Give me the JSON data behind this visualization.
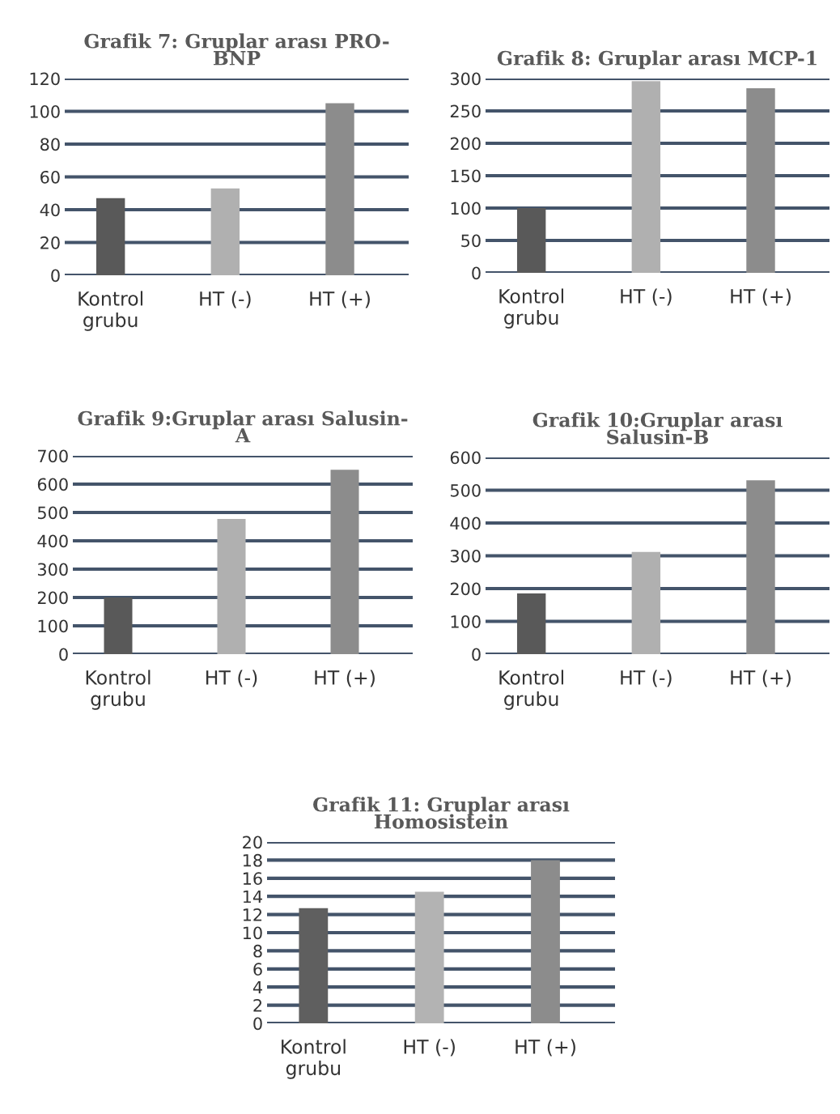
{
  "chart_data": [
    {
      "type": "bar",
      "title": "Grafik 7: Gruplar arası PRO-\nBNP",
      "categories": [
        "Kontrol\ngrubu",
        "HT (-)",
        "HT (+)"
      ],
      "values": [
        47,
        53,
        105
      ],
      "colors": [
        "#595959",
        "#b0b0b0",
        "#8c8c8c"
      ],
      "ylim": [
        0,
        120
      ],
      "yticks": [
        0,
        20,
        40,
        60,
        80,
        100,
        120
      ],
      "grid": "y"
    },
    {
      "type": "bar",
      "title": "Grafik 8: Gruplar arası MCP-1",
      "categories": [
        "Kontrol\ngrubu",
        "HT (-)",
        "HT (+)"
      ],
      "values": [
        100,
        296,
        285
      ],
      "colors": [
        "#595959",
        "#b0b0b0",
        "#8c8c8c"
      ],
      "ylim": [
        0,
        300
      ],
      "yticks": [
        0,
        50,
        100,
        150,
        200,
        250,
        300
      ],
      "grid": "y"
    },
    {
      "type": "bar",
      "title": "Grafik 9:Gruplar arası Salusin-\nA",
      "categories": [
        "Kontrol\ngrubu",
        "HT (-)",
        "HT (+)"
      ],
      "values": [
        200,
        477,
        651
      ],
      "colors": [
        "#595959",
        "#b0b0b0",
        "#8c8c8c"
      ],
      "ylim": [
        0,
        700
      ],
      "yticks": [
        0,
        100,
        200,
        300,
        400,
        500,
        600,
        700
      ],
      "grid": "y"
    },
    {
      "type": "bar",
      "title": "Grafik 10:Gruplar arası\nSalusin-B",
      "categories": [
        "Kontrol\ngrubu",
        "HT (-)",
        "HT (+)"
      ],
      "values": [
        185,
        312,
        530
      ],
      "colors": [
        "#595959",
        "#b0b0b0",
        "#8c8c8c"
      ],
      "ylim": [
        0,
        600
      ],
      "yticks": [
        0,
        100,
        200,
        300,
        400,
        500,
        600
      ],
      "grid": "y"
    },
    {
      "type": "bar",
      "title": "Grafik 11: Gruplar arası\nHomosistein",
      "categories": [
        "Kontrol\ngrubu",
        "HT (-)",
        "HT (+)"
      ],
      "values": [
        12.7,
        14.5,
        18
      ],
      "colors": [
        "#5f5f5f",
        "#b3b3b3",
        "#8c8c8c"
      ],
      "ylim": [
        0,
        20
      ],
      "yticks": [
        0,
        2,
        4,
        6,
        8,
        10,
        12,
        14,
        16,
        18,
        20
      ],
      "grid": "y"
    }
  ]
}
